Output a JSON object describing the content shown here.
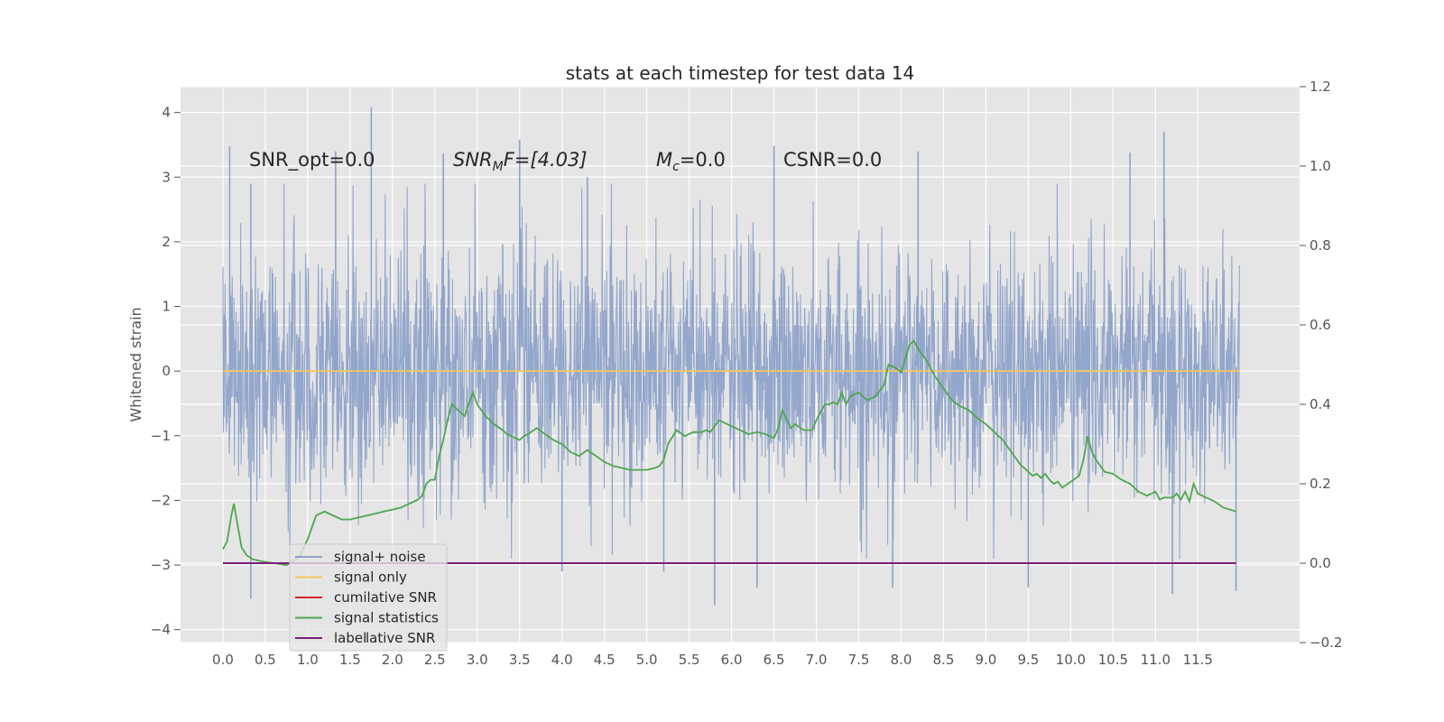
{
  "chart_data": {
    "type": "line",
    "title": "stats at each timestep for test data 14",
    "xlabel": "",
    "ylabel": "Whitened strain",
    "xlim": [
      -0.5,
      12.7
    ],
    "ylim": [
      -4.2,
      4.4
    ],
    "y2lim": [
      -0.2,
      1.2
    ],
    "grid": true,
    "x_ticks": [
      "0.0",
      "0.5",
      "1.0",
      "1.5",
      "2.0",
      "2.5",
      "3.0",
      "3.5",
      "4.0",
      "4.5",
      "5.0",
      "5.5",
      "6.0",
      "6.5",
      "7.0",
      "7.5",
      "8.0",
      "8.5",
      "9.0",
      "9.5",
      "10.0",
      "10.5",
      "11.0",
      "11.5"
    ],
    "y_ticks": [
      "4",
      "3",
      "2",
      "1",
      "0",
      "−1",
      "−2",
      "−3",
      "−4"
    ],
    "y2_ticks": [
      "1.2",
      "1.0",
      "0.8",
      "0.6",
      "0.4",
      "0.2",
      "0.0",
      "−0.2"
    ],
    "annotations": {
      "snr_opt": "SNR_opt=0.0",
      "snr_mf_italic": "SNR",
      "snr_mf_sub": "M",
      "snr_mf_rest": "F=[4.03]",
      "mc_italic": "M",
      "mc_sub": "c",
      "mc_rest": "=0.0",
      "csnr": "CSNR=0.0"
    },
    "legend_placement": "lower-left",
    "series": [
      {
        "name": "signal+ noise",
        "axis": "left",
        "color": "#8ea2c9",
        "description_values": "noise band roughly ±1.5 with spikes up to 4.1 and down to -3.6",
        "x_range": [
          0.0,
          11.99
        ],
        "spikes_high": [
          [
            0.08,
            3.48
          ],
          [
            0.33,
            2.9
          ],
          [
            1.33,
            3.4
          ],
          [
            1.75,
            4.08
          ],
          [
            2.6,
            3.37
          ],
          [
            3.5,
            3.58
          ],
          [
            4.3,
            3.0
          ],
          [
            6.5,
            3.48
          ],
          [
            8.2,
            3.4
          ],
          [
            11.1,
            3.7
          ],
          [
            10.7,
            3.38
          ]
        ],
        "spikes_low": [
          [
            0.33,
            -3.52
          ],
          [
            4.0,
            -3.1
          ],
          [
            5.2,
            -3.1
          ],
          [
            5.8,
            -3.62
          ],
          [
            6.3,
            -3.35
          ],
          [
            7.9,
            -3.35
          ],
          [
            9.5,
            -3.35
          ],
          [
            11.2,
            -3.45
          ],
          [
            11.95,
            -3.4
          ]
        ]
      },
      {
        "name": "signal only",
        "axis": "left",
        "color": "#f5c85a",
        "x": [
          0.0,
          12.0
        ],
        "y": [
          0.0,
          0.0
        ]
      },
      {
        "name": "cumilative SNR",
        "axis": "right",
        "color": "#d62728",
        "x": [],
        "y": []
      },
      {
        "name": "signal statistics",
        "axis": "right",
        "color": "#4fa64f",
        "x": [
          0.0,
          0.05,
          0.1,
          0.13,
          0.17,
          0.22,
          0.28,
          0.35,
          0.45,
          0.6,
          0.75,
          0.9,
          1.0,
          1.1,
          1.2,
          1.3,
          1.4,
          1.5,
          1.6,
          1.7,
          1.8,
          1.9,
          2.0,
          2.1,
          2.2,
          2.3,
          2.35,
          2.4,
          2.45,
          2.5,
          2.55,
          2.6,
          2.65,
          2.7,
          2.75,
          2.8,
          2.85,
          2.88,
          2.95,
          3.0,
          3.1,
          3.2,
          3.3,
          3.35,
          3.4,
          3.5,
          3.55,
          3.6,
          3.7,
          3.8,
          3.9,
          4.0,
          4.1,
          4.2,
          4.3,
          4.4,
          4.5,
          4.6,
          4.7,
          4.8,
          5.0,
          5.1,
          5.15,
          5.2,
          5.25,
          5.35,
          5.45,
          5.55,
          5.65,
          5.7,
          5.75,
          5.85,
          6.0,
          6.1,
          6.2,
          6.3,
          6.4,
          6.5,
          6.55,
          6.6,
          6.7,
          6.75,
          6.85,
          6.95,
          7.0,
          7.1,
          7.15,
          7.2,
          7.25,
          7.3,
          7.35,
          7.4,
          7.5,
          7.6,
          7.7,
          7.8,
          7.85,
          7.95,
          8.0,
          8.1,
          8.15,
          8.2,
          8.3,
          8.4,
          8.5,
          8.6,
          8.7,
          8.8,
          8.9,
          9.0,
          9.1,
          9.2,
          9.3,
          9.4,
          9.5,
          9.55,
          9.6,
          9.65,
          9.7,
          9.75,
          9.8,
          9.85,
          9.9,
          10.0,
          10.1,
          10.15,
          10.2,
          10.25,
          10.3,
          10.4,
          10.5,
          10.6,
          10.7,
          10.8,
          10.9,
          11.0,
          11.05,
          11.1,
          11.2,
          11.25,
          11.3,
          11.35,
          11.4,
          11.45,
          11.5,
          11.6,
          11.7,
          11.8,
          11.95
        ],
        "y": [
          0.035,
          0.055,
          0.12,
          0.15,
          0.1,
          0.04,
          0.02,
          0.01,
          0.005,
          0.0,
          -0.005,
          0.015,
          0.06,
          0.12,
          0.13,
          0.12,
          0.11,
          0.11,
          0.115,
          0.12,
          0.125,
          0.13,
          0.135,
          0.14,
          0.15,
          0.16,
          0.17,
          0.2,
          0.21,
          0.21,
          0.27,
          0.31,
          0.36,
          0.4,
          0.39,
          0.38,
          0.37,
          0.39,
          0.43,
          0.4,
          0.37,
          0.35,
          0.335,
          0.325,
          0.32,
          0.31,
          0.32,
          0.325,
          0.34,
          0.325,
          0.31,
          0.3,
          0.28,
          0.27,
          0.285,
          0.27,
          0.255,
          0.245,
          0.24,
          0.235,
          0.235,
          0.24,
          0.245,
          0.26,
          0.3,
          0.335,
          0.32,
          0.33,
          0.33,
          0.335,
          0.33,
          0.36,
          0.345,
          0.335,
          0.325,
          0.33,
          0.325,
          0.315,
          0.34,
          0.385,
          0.34,
          0.35,
          0.335,
          0.335,
          0.36,
          0.4,
          0.4,
          0.405,
          0.4,
          0.43,
          0.4,
          0.42,
          0.43,
          0.41,
          0.42,
          0.45,
          0.5,
          0.49,
          0.48,
          0.55,
          0.56,
          0.54,
          0.51,
          0.47,
          0.44,
          0.41,
          0.395,
          0.385,
          0.365,
          0.35,
          0.33,
          0.31,
          0.28,
          0.25,
          0.23,
          0.22,
          0.225,
          0.215,
          0.225,
          0.21,
          0.2,
          0.205,
          0.19,
          0.205,
          0.22,
          0.26,
          0.32,
          0.28,
          0.26,
          0.23,
          0.225,
          0.21,
          0.2,
          0.18,
          0.17,
          0.18,
          0.16,
          0.165,
          0.165,
          0.175,
          0.16,
          0.18,
          0.155,
          0.2,
          0.175,
          0.165,
          0.155,
          0.14,
          0.13
        ]
      },
      {
        "name": "label",
        "axis": "right",
        "color": "#7b1f7b",
        "x": [
          0.0,
          11.95
        ],
        "y": [
          0.0,
          0.0
        ]
      }
    ],
    "legend_extra": {
      "text": "lative SNR"
    }
  },
  "colors": {
    "axes_bg": "#e5e5e5",
    "grid": "#ffffff"
  }
}
